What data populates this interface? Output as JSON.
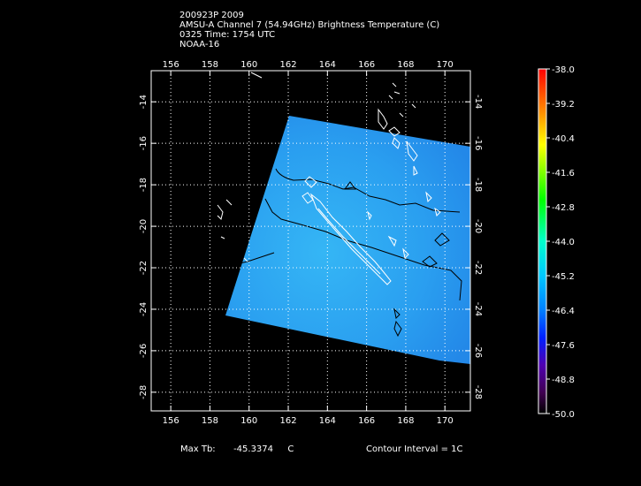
{
  "header": {
    "line1": "200923P 2009",
    "line2": "AMSU-A Channel 7 (54.94GHz) Brightness Temperature (C)",
    "line3": "0325 Time: 1754 UTC",
    "line4": "NOAA-16"
  },
  "map": {
    "lon_ticks": [
      "156",
      "158",
      "160",
      "162",
      "164",
      "166",
      "168",
      "170"
    ],
    "lat_ticks": [
      "-14",
      "-16",
      "-18",
      "-20",
      "-22",
      "-24",
      "-26",
      "-28"
    ],
    "lon_range": [
      155,
      171.3
    ],
    "lat_range": [
      -12.5,
      -28.9
    ],
    "swath_color": "#2aa0f0"
  },
  "colorbar": {
    "labels": [
      "-38.0",
      "-39.2",
      "-40.4",
      "-41.6",
      "-42.8",
      "-44.0",
      "-45.2",
      "-46.4",
      "-47.6",
      "-48.8",
      "-50.0"
    ],
    "colors_top_to_bottom": [
      "#ff0000",
      "#ff8800",
      "#ffff00",
      "#00ff00",
      "#00ffcc",
      "#00a0ff",
      "#0040ff",
      "#4000c0",
      "#600080",
      "#300040",
      "#000000"
    ]
  },
  "footer": {
    "max_label": "Max Tb:",
    "max_value": "-45.3374",
    "max_unit": "C",
    "contour_label": "Contour Interval = 1C"
  }
}
